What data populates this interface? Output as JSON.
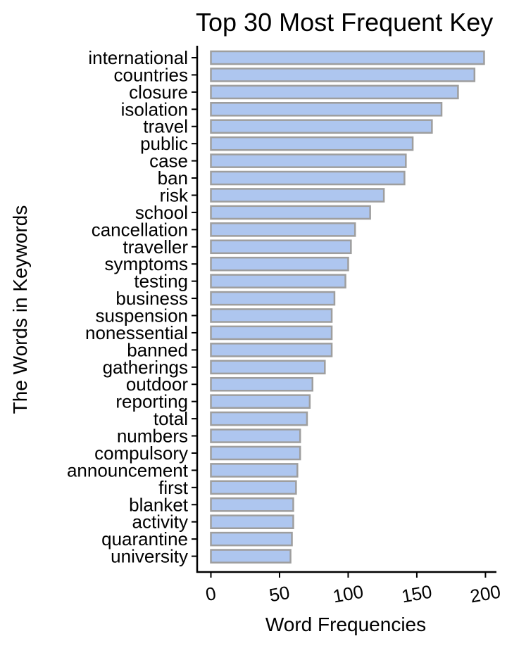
{
  "chart_data": {
    "type": "bar",
    "orientation": "horizontal",
    "title": "Top 30 Most Frequent Key",
    "xlabel": "Word Frequencies",
    "ylabel": "The Words in Keywords",
    "categories": [
      "international",
      "countries",
      "closure",
      "isolation",
      "travel",
      "public",
      "case",
      "ban",
      "risk",
      "school",
      "cancellation",
      "traveller",
      "symptoms",
      "testing",
      "business",
      "suspension",
      "nonessential",
      "banned",
      "gatherings",
      "outdoor",
      "reporting",
      "total",
      "numbers",
      "compulsory",
      "announcement",
      "first",
      "blanket",
      "activity",
      "quarantine",
      "university"
    ],
    "values": [
      199,
      192,
      180,
      168,
      161,
      147,
      142,
      141,
      126,
      116,
      105,
      102,
      100,
      98,
      90,
      88,
      88,
      88,
      83,
      74,
      72,
      70,
      65,
      65,
      63,
      62,
      60,
      60,
      59,
      58
    ],
    "xlim": [
      -10,
      208
    ],
    "xticks": [
      0,
      50,
      100,
      150,
      200
    ],
    "grid": false,
    "legend": "none",
    "bar_fill": "#aec6ef",
    "bar_stroke": "#9e9e9e"
  }
}
